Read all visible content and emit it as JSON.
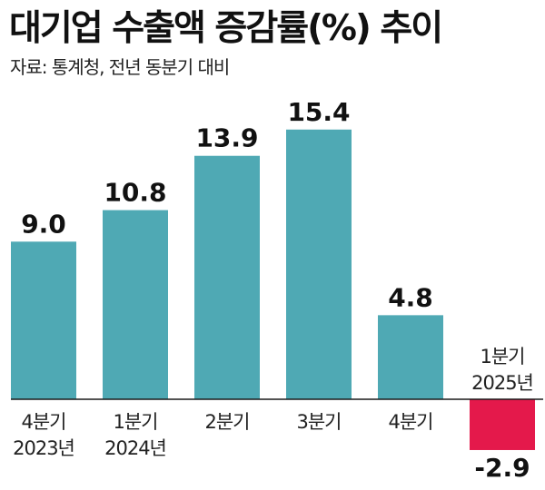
{
  "title": "대기업 수출액 증감률(%) 추이",
  "subtitle": "자료: 통계청, 전년 동분기 대비",
  "colors": {
    "positive": "#4FA9B4",
    "negative": "#E4194B",
    "baseline": "#1a1a1a"
  },
  "chart_data": {
    "type": "bar",
    "categories": [
      [
        "4분기",
        "2023년"
      ],
      [
        "1분기",
        "2024년"
      ],
      [
        "2분기"
      ],
      [
        "3분기"
      ],
      [
        "4분기"
      ],
      [
        "1분기",
        "2025년"
      ]
    ],
    "values": [
      9.0,
      10.8,
      13.9,
      15.4,
      4.8,
      -2.9
    ],
    "data_labels": [
      "9.0",
      "10.8",
      "13.9",
      "15.4",
      "4.8",
      "-2.9"
    ],
    "grid": false,
    "legend": "none"
  }
}
